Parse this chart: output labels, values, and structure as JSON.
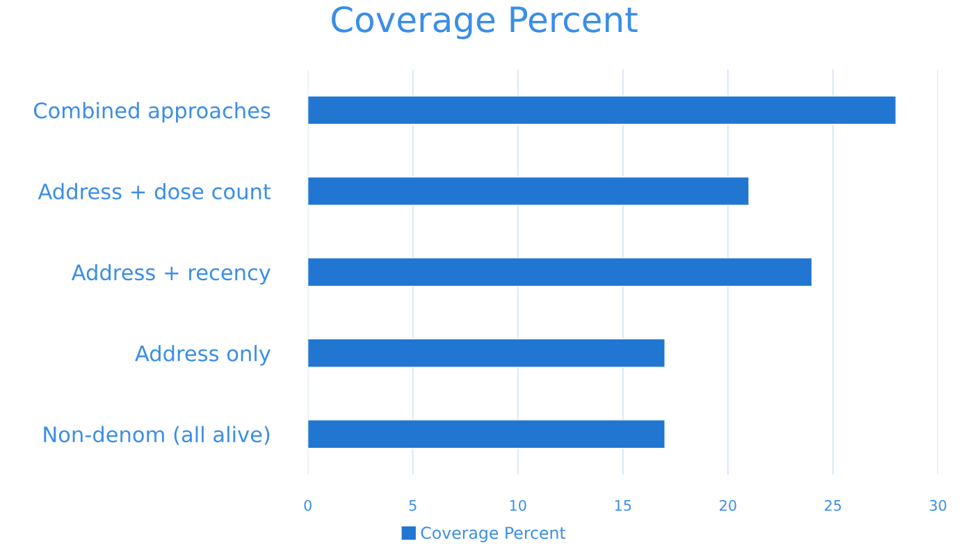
{
  "chart_data": {
    "type": "bar",
    "orientation": "horizontal",
    "title": "Coverage Percent",
    "categories": [
      "Combined approaches",
      "Address + dose count",
      "Address + recency",
      "Address only",
      "Non-denom (all alive)"
    ],
    "series": [
      {
        "name": "Coverage Percent",
        "color": "#2176d2",
        "values": [
          28,
          21,
          24,
          17,
          17
        ]
      }
    ],
    "xlim": [
      0,
      30
    ],
    "xticks": [
      0,
      5,
      10,
      15,
      20,
      25,
      30
    ],
    "grid": "x",
    "legend": "bottom"
  }
}
